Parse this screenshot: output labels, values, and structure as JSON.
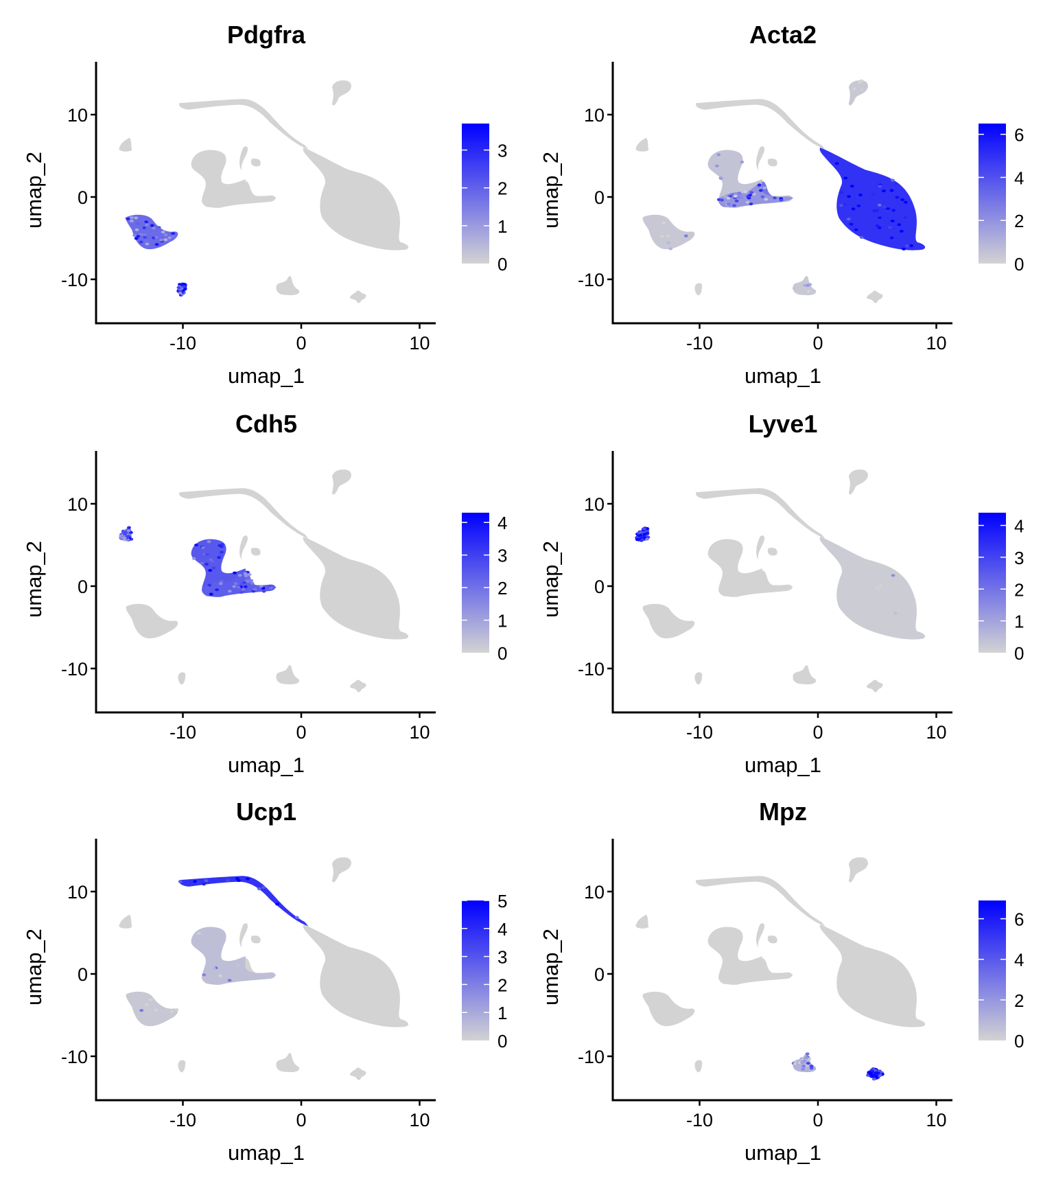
{
  "chart_data": [
    {
      "type": "scatter",
      "title": "Pdgfra",
      "xlabel": "umap_1",
      "ylabel": "umap_2",
      "xlim": [
        -17.4,
        11.4
      ],
      "ylim": [
        -15.3,
        16.3
      ],
      "xticks": [
        -10,
        0,
        10
      ],
      "yticks": [
        -10,
        0,
        10
      ],
      "low_color": "#d3d3d3",
      "high_color": "#0000ff",
      "color_range": [
        0,
        3.7
      ],
      "legend_ticks": [
        0,
        1,
        2,
        3
      ],
      "legend_position": "right",
      "expression": {
        "left_blob": 0.55,
        "bottom_left_small": 0.7
      }
    },
    {
      "type": "scatter",
      "title": "Acta2",
      "xlabel": "umap_1",
      "ylabel": "umap_2",
      "xlim": [
        -17.4,
        11.4
      ],
      "ylim": [
        -15.3,
        16.3
      ],
      "xticks": [
        -10,
        0,
        10
      ],
      "yticks": [
        -10,
        0,
        10
      ],
      "low_color": "#d3d3d3",
      "high_color": "#0000ff",
      "color_range": [
        0,
        6.5
      ],
      "legend_ticks": [
        0,
        2,
        4,
        6
      ],
      "legend_position": "right",
      "expression": {
        "big_right": 0.85,
        "middle_lower": 0.5,
        "middle_cluster": 0.15,
        "left_blob": 0.1,
        "bottom_mid": 0.1,
        "top_right_small": 0.1
      }
    },
    {
      "type": "scatter",
      "title": "Cdh5",
      "xlabel": "umap_1",
      "ylabel": "umap_2",
      "xlim": [
        -17.4,
        11.4
      ],
      "ylim": [
        -15.3,
        16.3
      ],
      "xticks": [
        -10,
        0,
        10
      ],
      "yticks": [
        -10,
        0,
        10
      ],
      "low_color": "#d3d3d3",
      "high_color": "#0000ff",
      "color_range": [
        0,
        4.3
      ],
      "legend_ticks": [
        0,
        1,
        2,
        3,
        4
      ],
      "legend_position": "right",
      "expression": {
        "middle_cluster": 0.65,
        "middle_lower": 0.55,
        "far_left_small": 0.55
      }
    },
    {
      "type": "scatter",
      "title": "Lyve1",
      "xlabel": "umap_1",
      "ylabel": "umap_2",
      "xlim": [
        -17.4,
        11.4
      ],
      "ylim": [
        -15.3,
        16.3
      ],
      "xticks": [
        -10,
        0,
        10
      ],
      "yticks": [
        -10,
        0,
        10
      ],
      "low_color": "#d3d3d3",
      "high_color": "#0000ff",
      "color_range": [
        0,
        4.4
      ],
      "legend_ticks": [
        0,
        1,
        2,
        3,
        4
      ],
      "legend_position": "right",
      "expression": {
        "far_left_small": 0.75,
        "big_right": 0.06
      }
    },
    {
      "type": "scatter",
      "title": "Ucp1",
      "xlabel": "umap_1",
      "ylabel": "umap_2",
      "xlim": [
        -17.4,
        11.4
      ],
      "ylim": [
        -15.3,
        16.3
      ],
      "xticks": [
        -10,
        0,
        10
      ],
      "yticks": [
        -10,
        0,
        10
      ],
      "low_color": "#d3d3d3",
      "high_color": "#0000ff",
      "color_range": [
        0,
        5.0
      ],
      "legend_ticks": [
        0,
        1,
        2,
        3,
        4,
        5
      ],
      "legend_position": "right",
      "expression": {
        "top_strand": 0.85,
        "middle_cluster": 0.2,
        "left_blob": 0.1
      }
    },
    {
      "type": "scatter",
      "title": "Mpz",
      "xlabel": "umap_1",
      "ylabel": "umap_2",
      "xlim": [
        -17.4,
        11.4
      ],
      "ylim": [
        -15.3,
        16.3
      ],
      "xticks": [
        -10,
        0,
        10
      ],
      "yticks": [
        -10,
        0,
        10
      ],
      "low_color": "#d3d3d3",
      "high_color": "#0000ff",
      "color_range": [
        0,
        6.9
      ],
      "legend_ticks": [
        0,
        2,
        4,
        6
      ],
      "legend_position": "right",
      "expression": {
        "bottom_right_small": 0.9,
        "bottom_mid": 0.3
      }
    }
  ]
}
